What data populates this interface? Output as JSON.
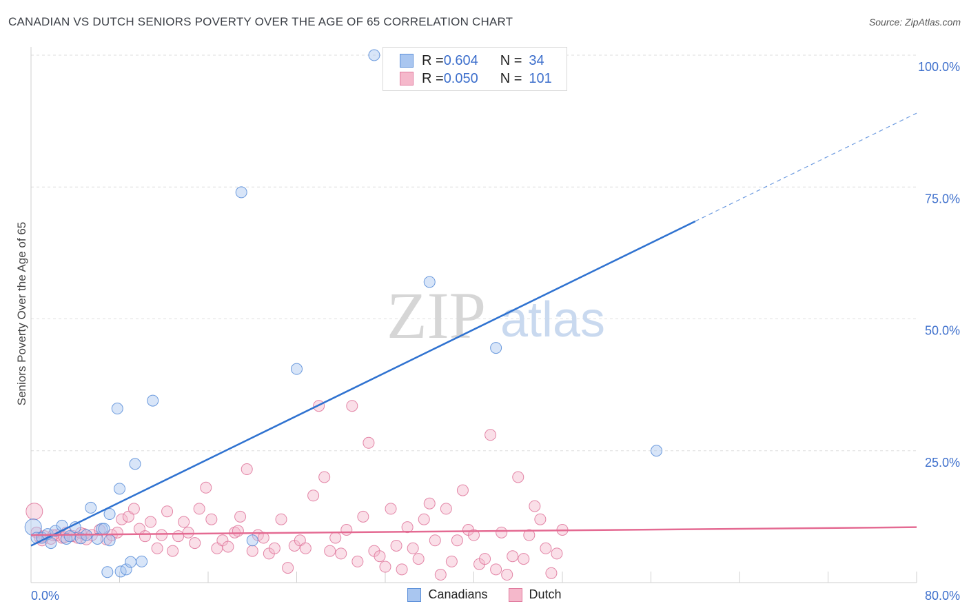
{
  "title": "CANADIAN VS DUTCH SENIORS POVERTY OVER THE AGE OF 65 CORRELATION CHART",
  "source": "Source: ZipAtlas.com",
  "watermark": {
    "zip": "ZIP",
    "atlas": "atlas"
  },
  "legend_top": {
    "rows": [
      {
        "r_label": "R = ",
        "r_value": "0.604",
        "n_label": "N = ",
        "n_value": "34"
      },
      {
        "r_label": "R = ",
        "r_value": "0.050",
        "n_label": "N = ",
        "n_value": "101"
      }
    ]
  },
  "chart_data": {
    "type": "scatter",
    "title": "CANADIAN VS DUTCH SENIORS POVERTY OVER THE AGE OF 65 CORRELATION CHART",
    "xlabel": "",
    "ylabel": "Seniors Poverty Over the Age of 65",
    "xlim": [
      0,
      80
    ],
    "ylim": [
      0,
      100
    ],
    "x_tick_labels": [
      "0.0%",
      "80.0%"
    ],
    "y_tick_labels": [
      "25.0%",
      "50.0%",
      "75.0%",
      "100.0%"
    ],
    "y_ticks": [
      25,
      50,
      75,
      100
    ],
    "colors": {
      "blue": "#5b8fd9",
      "blue_fill": "#a9c6f0",
      "pink": "#e0799d",
      "pink_fill": "#f5b8cb",
      "tick_text": "#3d6fcc"
    },
    "series": [
      {
        "name": "Canadians",
        "r": 0.604,
        "n": 34,
        "trend": {
          "x0": 0,
          "y0": 7,
          "x1": 60,
          "y1": 68.5,
          "dash_x1": 80,
          "dash_y1": 89
        },
        "points": [
          [
            0.2,
            10.5
          ],
          [
            0.5,
            8.5
          ],
          [
            1.0,
            8.5
          ],
          [
            1.5,
            9.2
          ],
          [
            1.8,
            7.5
          ],
          [
            2.2,
            9.8
          ],
          [
            2.8,
            10.8
          ],
          [
            3.2,
            8.3
          ],
          [
            3.5,
            8.8
          ],
          [
            4.0,
            10.5
          ],
          [
            4.5,
            8.4
          ],
          [
            5.0,
            9.0
          ],
          [
            6.0,
            8.3
          ],
          [
            6.4,
            10.2
          ],
          [
            7.1,
            13.0
          ],
          [
            5.4,
            14.2
          ],
          [
            6.6,
            10.2
          ],
          [
            7.8,
            33.0
          ],
          [
            8.1,
            2.1
          ],
          [
            8.6,
            2.5
          ],
          [
            9.0,
            3.9
          ],
          [
            9.4,
            22.5
          ],
          [
            10.0,
            4.0
          ],
          [
            11.0,
            34.5
          ],
          [
            6.9,
            2.0
          ],
          [
            7.1,
            8.0
          ],
          [
            8.0,
            17.8
          ],
          [
            19.0,
            74.0
          ],
          [
            20.0,
            8.0
          ],
          [
            24.0,
            40.5
          ],
          [
            31.0,
            100.0
          ],
          [
            36.0,
            57.0
          ],
          [
            42.0,
            44.5
          ],
          [
            56.5,
            25.0
          ]
        ]
      },
      {
        "name": "Dutch",
        "r": 0.05,
        "n": 101,
        "trend": {
          "x0": 0,
          "y0": 9.0,
          "x1": 80,
          "y1": 10.5
        },
        "points": [
          [
            0.3,
            13.5
          ],
          [
            0.5,
            9.5
          ],
          [
            0.8,
            8.5
          ],
          [
            1.2,
            8.8
          ],
          [
            1.8,
            8.3
          ],
          [
            2.3,
            9.0
          ],
          [
            2.8,
            8.5
          ],
          [
            3.2,
            9.5
          ],
          [
            3.8,
            8.8
          ],
          [
            4.2,
            8.5
          ],
          [
            4.8,
            9.2
          ],
          [
            5.5,
            9.0
          ],
          [
            6.2,
            10.0
          ],
          [
            6.8,
            8.2
          ],
          [
            7.3,
            9.0
          ],
          [
            7.8,
            9.5
          ],
          [
            8.2,
            12.0
          ],
          [
            8.8,
            12.5
          ],
          [
            9.3,
            14.0
          ],
          [
            9.8,
            10.2
          ],
          [
            10.3,
            8.8
          ],
          [
            10.8,
            11.5
          ],
          [
            11.4,
            6.5
          ],
          [
            11.8,
            9.0
          ],
          [
            12.3,
            13.5
          ],
          [
            12.8,
            6.0
          ],
          [
            13.3,
            8.8
          ],
          [
            13.8,
            11.5
          ],
          [
            14.2,
            9.5
          ],
          [
            14.8,
            7.5
          ],
          [
            15.2,
            14.0
          ],
          [
            15.8,
            18.0
          ],
          [
            16.3,
            12.0
          ],
          [
            16.8,
            6.5
          ],
          [
            17.3,
            8.0
          ],
          [
            17.8,
            6.8
          ],
          [
            18.4,
            9.5
          ],
          [
            18.9,
            12.5
          ],
          [
            19.5,
            21.5
          ],
          [
            20.0,
            6.0
          ],
          [
            20.5,
            9.0
          ],
          [
            21.0,
            8.5
          ],
          [
            21.5,
            5.5
          ],
          [
            22.0,
            6.5
          ],
          [
            22.6,
            12.0
          ],
          [
            23.2,
            2.8
          ],
          [
            23.8,
            7.0
          ],
          [
            24.3,
            8.0
          ],
          [
            24.8,
            6.5
          ],
          [
            25.5,
            16.5
          ],
          [
            26.0,
            33.5
          ],
          [
            26.5,
            20.0
          ],
          [
            27.0,
            6.0
          ],
          [
            27.5,
            8.5
          ],
          [
            28.0,
            5.5
          ],
          [
            28.5,
            10.0
          ],
          [
            29.0,
            33.5
          ],
          [
            29.5,
            4.0
          ],
          [
            30.0,
            12.5
          ],
          [
            30.5,
            26.5
          ],
          [
            31.0,
            6.0
          ],
          [
            31.5,
            5.0
          ],
          [
            32.0,
            3.0
          ],
          [
            32.5,
            14.0
          ],
          [
            33.0,
            7.0
          ],
          [
            33.5,
            2.5
          ],
          [
            34.0,
            10.5
          ],
          [
            34.5,
            6.5
          ],
          [
            35.0,
            4.5
          ],
          [
            35.5,
            12.0
          ],
          [
            36.0,
            15.0
          ],
          [
            36.5,
            8.0
          ],
          [
            37.0,
            1.5
          ],
          [
            37.5,
            14.0
          ],
          [
            38.0,
            4.0
          ],
          [
            38.5,
            8.0
          ],
          [
            39.0,
            17.5
          ],
          [
            39.5,
            10.0
          ],
          [
            40.0,
            9.0
          ],
          [
            40.5,
            3.5
          ],
          [
            41.0,
            4.5
          ],
          [
            41.5,
            28.0
          ],
          [
            42.0,
            2.5
          ],
          [
            42.5,
            9.5
          ],
          [
            43.0,
            1.5
          ],
          [
            43.5,
            5.0
          ],
          [
            44.0,
            20.0
          ],
          [
            44.5,
            4.5
          ],
          [
            45.0,
            9.0
          ],
          [
            45.5,
            14.5
          ],
          [
            46.0,
            12.0
          ],
          [
            46.5,
            6.5
          ],
          [
            47.0,
            1.8
          ],
          [
            47.5,
            5.5
          ],
          [
            48.0,
            10.0
          ],
          [
            18.7,
            9.8
          ],
          [
            1.0,
            8.0
          ],
          [
            2.0,
            9.0
          ],
          [
            3.0,
            8.6
          ],
          [
            4.5,
            9.4
          ],
          [
            5.0,
            8.2
          ]
        ]
      }
    ]
  },
  "bottom_legend": [
    {
      "label": "Canadians"
    },
    {
      "label": "Dutch"
    }
  ]
}
